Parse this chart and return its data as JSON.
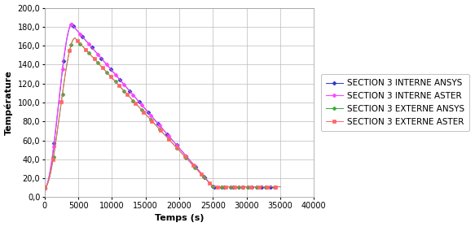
{
  "title": "",
  "xlabel": "Temps (s)",
  "ylabel": "Température",
  "xlim": [
    0,
    40000
  ],
  "ylim": [
    0.0,
    200.0
  ],
  "xticks": [
    0,
    5000,
    10000,
    15000,
    20000,
    25000,
    30000,
    35000,
    40000
  ],
  "yticks": [
    0.0,
    20.0,
    40.0,
    60.0,
    80.0,
    100.0,
    120.0,
    140.0,
    160.0,
    180.0,
    200.0
  ],
  "legend": [
    "SECTION 3 INTERNE ANSYS",
    "SECTION 3 INTERNE ASTER",
    "SECTION 3 EXTERNE ANSYS",
    "SECTION 3 EXTERNE ASTER"
  ],
  "line_colors": [
    "#3333CC",
    "#FF44FF",
    "#33AA33",
    "#FF6666"
  ],
  "background_color": "#FFFFFF",
  "grid_color": "#BBBBBB",
  "font_size": 8,
  "legend_font_size": 7.5
}
